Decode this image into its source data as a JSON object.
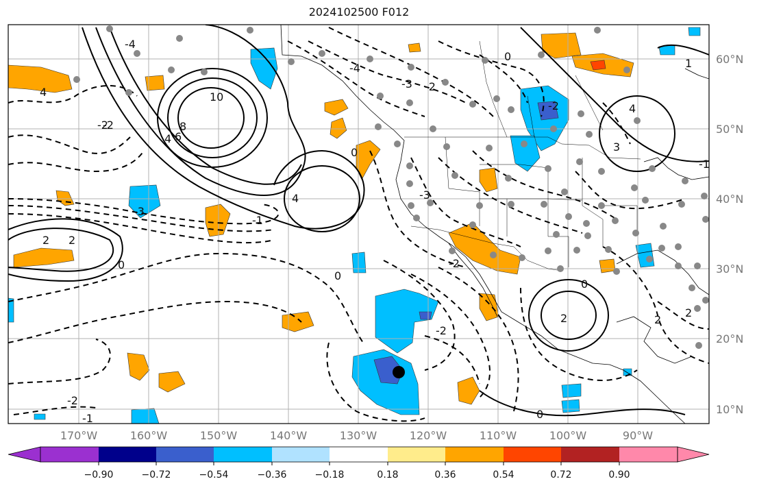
{
  "title": "2024102500 F012",
  "map": {
    "lon_labels": [
      "170°W",
      "160°W",
      "150°W",
      "140°W",
      "130°W",
      "120°W",
      "110°W",
      "100°W",
      "90°W"
    ],
    "lat_labels": [
      "60°N",
      "50°N",
      "40°N",
      "30°N",
      "20°N",
      "10°N"
    ],
    "contour_labels": [
      "10",
      "8",
      "6",
      "4",
      "4",
      "4",
      "2",
      "0",
      "-3",
      "-1",
      "-2",
      "0",
      "0",
      "-2",
      "2",
      "0",
      "-1",
      "-2",
      "-3",
      "-4",
      "-3",
      "-2",
      "-2",
      "4",
      "2",
      "0",
      "0",
      "-1",
      "-2",
      "1",
      "3",
      "2",
      "2",
      "-4",
      "-2"
    ],
    "colors": {
      "land_border": "#000000",
      "grid": "#b0b0b0",
      "station_dot": "#888888",
      "storm_marker": "#000000"
    }
  },
  "colorbar": {
    "ticks": [
      "−0.90",
      "−0.72",
      "−0.54",
      "−0.36",
      "−0.18",
      "0.18",
      "0.36",
      "0.54",
      "0.72",
      "0.90"
    ],
    "colors": [
      "#9b30d0",
      "#00008b",
      "#3a5fcd",
      "#00bfff",
      "#b0e2ff",
      "#ffffff",
      "#ffec8b",
      "#ffa500",
      "#ff4500",
      "#b22222",
      "#ff88aa"
    ],
    "extend": "both"
  }
}
